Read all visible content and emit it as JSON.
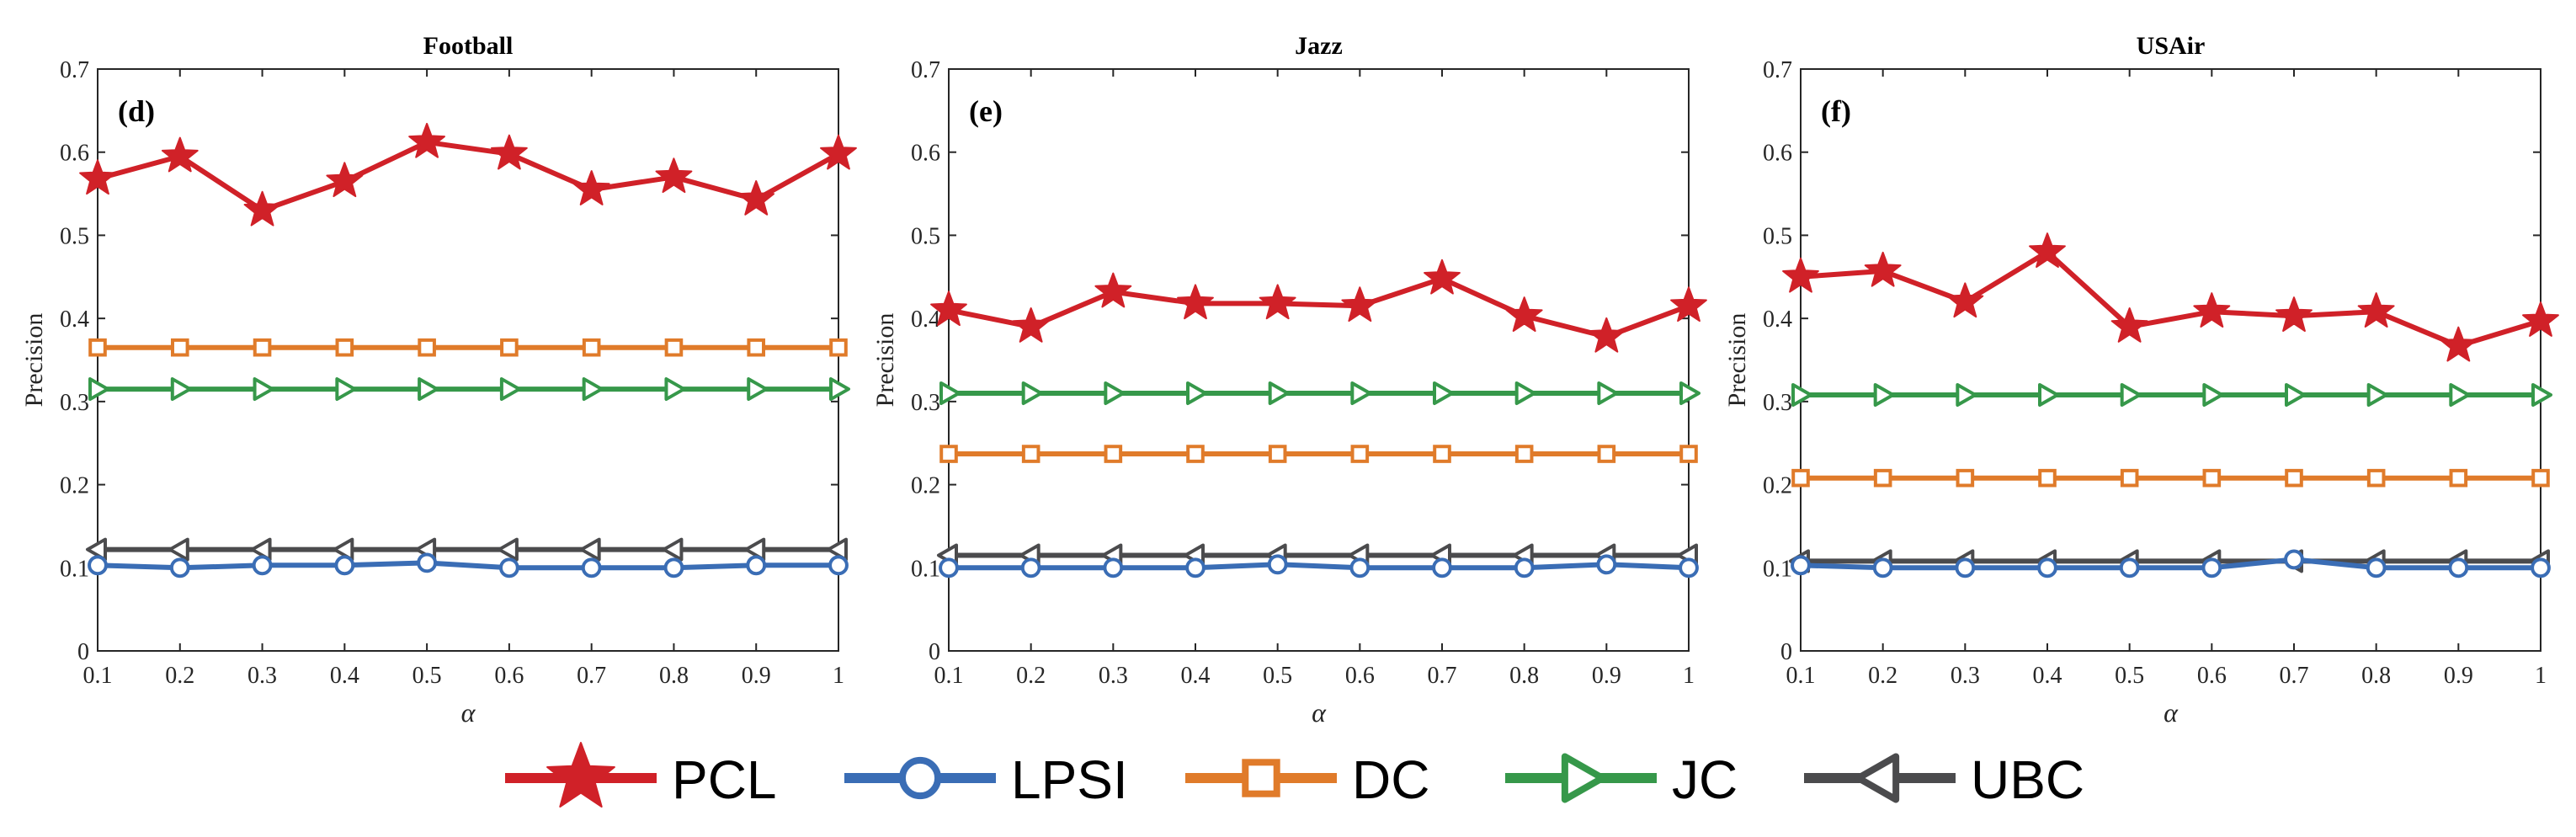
{
  "chart_data": [
    {
      "type": "line",
      "title": "Football",
      "panel_label": "(d)",
      "xlabel": "α",
      "ylabel": "Precision",
      "x": [
        0.1,
        0.2,
        0.3,
        0.4,
        0.5,
        0.6,
        0.7,
        0.8,
        0.9,
        1
      ],
      "x_ticks": [
        "0.1",
        "0.2",
        "0.3",
        "0.4",
        "0.5",
        "0.6",
        "0.7",
        "0.8",
        "0.9",
        "1"
      ],
      "y_ticks": [
        "0",
        "0.1",
        "0.2",
        "0.3",
        "0.4",
        "0.5",
        "0.6",
        "0.7"
      ],
      "xlim": [
        0.1,
        1
      ],
      "ylim": [
        0,
        0.7
      ],
      "grid": false,
      "series": [
        {
          "name": "PCL",
          "values": [
            0.568,
            0.595,
            0.53,
            0.565,
            0.612,
            0.598,
            0.555,
            0.57,
            0.543,
            0.598
          ]
        },
        {
          "name": "LPSI",
          "values": [
            0.103,
            0.1,
            0.103,
            0.103,
            0.106,
            0.1,
            0.1,
            0.1,
            0.103,
            0.103
          ]
        },
        {
          "name": "DC",
          "values": [
            0.365,
            0.365,
            0.365,
            0.365,
            0.365,
            0.365,
            0.365,
            0.365,
            0.365,
            0.365
          ]
        },
        {
          "name": "JC",
          "values": [
            0.315,
            0.315,
            0.315,
            0.315,
            0.315,
            0.315,
            0.315,
            0.315,
            0.315,
            0.315
          ]
        },
        {
          "name": "UBC",
          "values": [
            0.122,
            0.122,
            0.122,
            0.122,
            0.122,
            0.122,
            0.122,
            0.122,
            0.122,
            0.122
          ]
        }
      ]
    },
    {
      "type": "line",
      "title": "Jazz",
      "panel_label": "(e)",
      "xlabel": "α",
      "ylabel": "Precision",
      "x": [
        0.1,
        0.2,
        0.3,
        0.4,
        0.5,
        0.6,
        0.7,
        0.8,
        0.9,
        1
      ],
      "x_ticks": [
        "0.1",
        "0.2",
        "0.3",
        "0.4",
        "0.5",
        "0.6",
        "0.7",
        "0.8",
        "0.9",
        "1"
      ],
      "y_ticks": [
        "0",
        "0.1",
        "0.2",
        "0.3",
        "0.4",
        "0.5",
        "0.6",
        "0.7"
      ],
      "xlim": [
        0.1,
        1
      ],
      "ylim": [
        0,
        0.7
      ],
      "grid": false,
      "series": [
        {
          "name": "PCL",
          "values": [
            0.41,
            0.39,
            0.432,
            0.418,
            0.418,
            0.415,
            0.448,
            0.403,
            0.378,
            0.415
          ]
        },
        {
          "name": "LPSI",
          "values": [
            0.1,
            0.1,
            0.1,
            0.1,
            0.104,
            0.1,
            0.1,
            0.1,
            0.104,
            0.1
          ]
        },
        {
          "name": "DC",
          "values": [
            0.237,
            0.237,
            0.237,
            0.237,
            0.237,
            0.237,
            0.237,
            0.237,
            0.237,
            0.237
          ]
        },
        {
          "name": "JC",
          "values": [
            0.31,
            0.31,
            0.31,
            0.31,
            0.31,
            0.31,
            0.31,
            0.31,
            0.31,
            0.31
          ]
        },
        {
          "name": "UBC",
          "values": [
            0.115,
            0.115,
            0.115,
            0.115,
            0.115,
            0.115,
            0.115,
            0.115,
            0.115,
            0.115
          ]
        }
      ]
    },
    {
      "type": "line",
      "title": "USAir",
      "panel_label": "(f)",
      "xlabel": "α",
      "ylabel": "Precision",
      "x": [
        0.1,
        0.2,
        0.3,
        0.4,
        0.5,
        0.6,
        0.7,
        0.8,
        0.9,
        1
      ],
      "x_ticks": [
        "0.1",
        "0.2",
        "0.3",
        "0.4",
        "0.5",
        "0.6",
        "0.7",
        "0.8",
        "0.9",
        "1"
      ],
      "y_ticks": [
        "0",
        "0.1",
        "0.2",
        "0.3",
        "0.4",
        "0.5",
        "0.6",
        "0.7"
      ],
      "xlim": [
        0.1,
        1
      ],
      "ylim": [
        0,
        0.7
      ],
      "grid": false,
      "series": [
        {
          "name": "PCL",
          "values": [
            0.45,
            0.457,
            0.42,
            0.48,
            0.39,
            0.408,
            0.403,
            0.408,
            0.367,
            0.397
          ]
        },
        {
          "name": "LPSI",
          "values": [
            0.103,
            0.1,
            0.1,
            0.1,
            0.1,
            0.1,
            0.11,
            0.1,
            0.1,
            0.1
          ]
        },
        {
          "name": "DC",
          "values": [
            0.208,
            0.208,
            0.208,
            0.208,
            0.208,
            0.208,
            0.208,
            0.208,
            0.208,
            0.208
          ]
        },
        {
          "name": "JC",
          "values": [
            0.308,
            0.308,
            0.308,
            0.308,
            0.308,
            0.308,
            0.308,
            0.308,
            0.308,
            0.308
          ]
        },
        {
          "name": "UBC",
          "values": [
            0.108,
            0.108,
            0.108,
            0.108,
            0.108,
            0.108,
            0.108,
            0.108,
            0.108,
            0.108
          ]
        }
      ]
    }
  ],
  "series_styles": [
    {
      "name": "PCL",
      "color": "#d02128",
      "marker": "star"
    },
    {
      "name": "LPSI",
      "color": "#3a6db5",
      "marker": "circle"
    },
    {
      "name": "DC",
      "color": "#e07b2a",
      "marker": "square"
    },
    {
      "name": "JC",
      "color": "#36984a",
      "marker": "triangle-right"
    },
    {
      "name": "UBC",
      "color": "#4b4b4d",
      "marker": "triangle-left"
    }
  ],
  "legend": {
    "placement": "bottom",
    "items": [
      "PCL",
      "LPSI",
      "DC",
      "JC",
      "UBC"
    ]
  }
}
